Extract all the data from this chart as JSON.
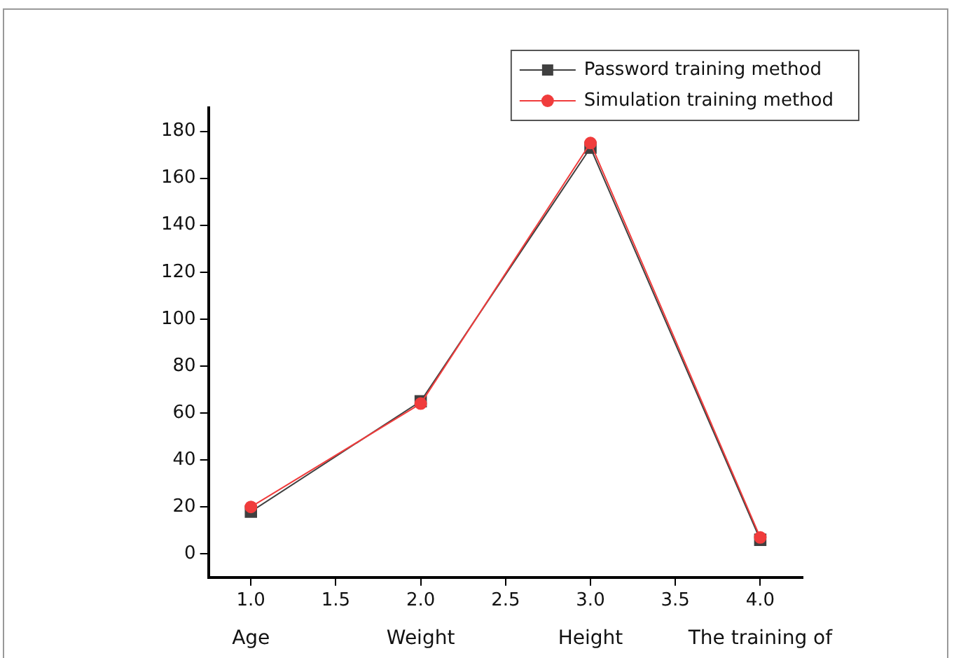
{
  "chart_data": {
    "type": "line",
    "x": [
      1,
      2,
      3,
      4
    ],
    "series": [
      {
        "name": "Password training method",
        "color": "#404040",
        "marker": "square",
        "values": [
          18,
          65,
          173,
          6
        ]
      },
      {
        "name": "Simulation training method",
        "color": "#f03c3c",
        "marker": "circle",
        "values": [
          20,
          64,
          175,
          7
        ]
      }
    ],
    "xlim": [
      0.75,
      4.25
    ],
    "xticks": [
      {
        "value": 1,
        "label": "1.0"
      },
      {
        "value": 1.5,
        "label": "1.5"
      },
      {
        "value": 2,
        "label": "2.0"
      },
      {
        "value": 2.5,
        "label": "2.5"
      },
      {
        "value": 3,
        "label": "3.0"
      },
      {
        "value": 3.5,
        "label": "3.5"
      },
      {
        "value": 4,
        "label": "4.0"
      }
    ],
    "ylim": [
      -10,
      190
    ],
    "yticks": [
      0,
      20,
      40,
      60,
      80,
      100,
      120,
      140,
      160,
      180
    ],
    "annotations": [
      "Age",
      "Weight",
      "Height",
      "The training of"
    ],
    "grid": false,
    "legend": "top right"
  }
}
